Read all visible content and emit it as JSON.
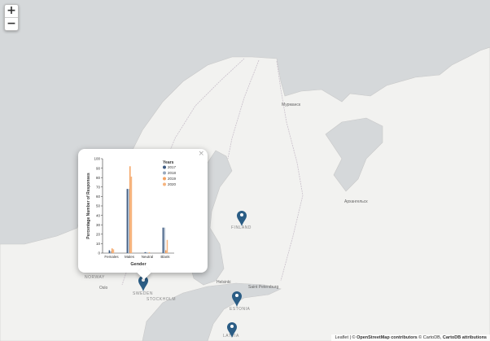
{
  "map": {
    "labels": {
      "murmansk": "Мурманск",
      "arkhangelsk": "Архангельск",
      "finland": "FINLAND",
      "sweden": "SWEDEN",
      "stockholm": "STOCKHOLM",
      "norway": "NORWAY",
      "oslo": "Oslo",
      "saint_petersburg": "Saint Petersburg",
      "helsinki": "Helsinki",
      "estonia": "ESTONIA",
      "latvia": "LATVIA"
    },
    "colors": {
      "water": "#d5d8da",
      "land": "#f2f2f0",
      "border": "#c8c8c8",
      "marker": "#2b5d85"
    }
  },
  "zoom": {
    "in_label": "+",
    "out_label": "−"
  },
  "popup": {
    "close_label": "×"
  },
  "attribution": {
    "leaflet": "Leaflet",
    "separator": " | © ",
    "osm": "OpenStreetMap contributors",
    "middle": " © CartoDB, ",
    "carto": "CartoDB attributions"
  },
  "chart_data": {
    "type": "bar",
    "categories": [
      "Females",
      "Males",
      "Neutral",
      "Blank"
    ],
    "series": [
      {
        "name": "2017",
        "color": "#3d5a80",
        "values": [
          3,
          68,
          1,
          27
        ]
      },
      {
        "name": "2018",
        "color": "#98a9be",
        "values": [
          2,
          68,
          1,
          27
        ]
      },
      {
        "name": "2019",
        "color": "#f4a261",
        "values": [
          5,
          92,
          0,
          3
        ]
      },
      {
        "name": "2020",
        "color": "#f6b47e",
        "values": [
          4,
          81,
          1,
          14
        ]
      }
    ],
    "legend_title": "Years",
    "xlabel": "Gender",
    "ylabel": "Percentage Number of Responses",
    "ylim": [
      0,
      100
    ],
    "yticks": [
      0,
      10,
      20,
      30,
      40,
      50,
      60,
      70,
      80,
      90,
      100
    ],
    "grid": false,
    "legend": "top-right"
  }
}
